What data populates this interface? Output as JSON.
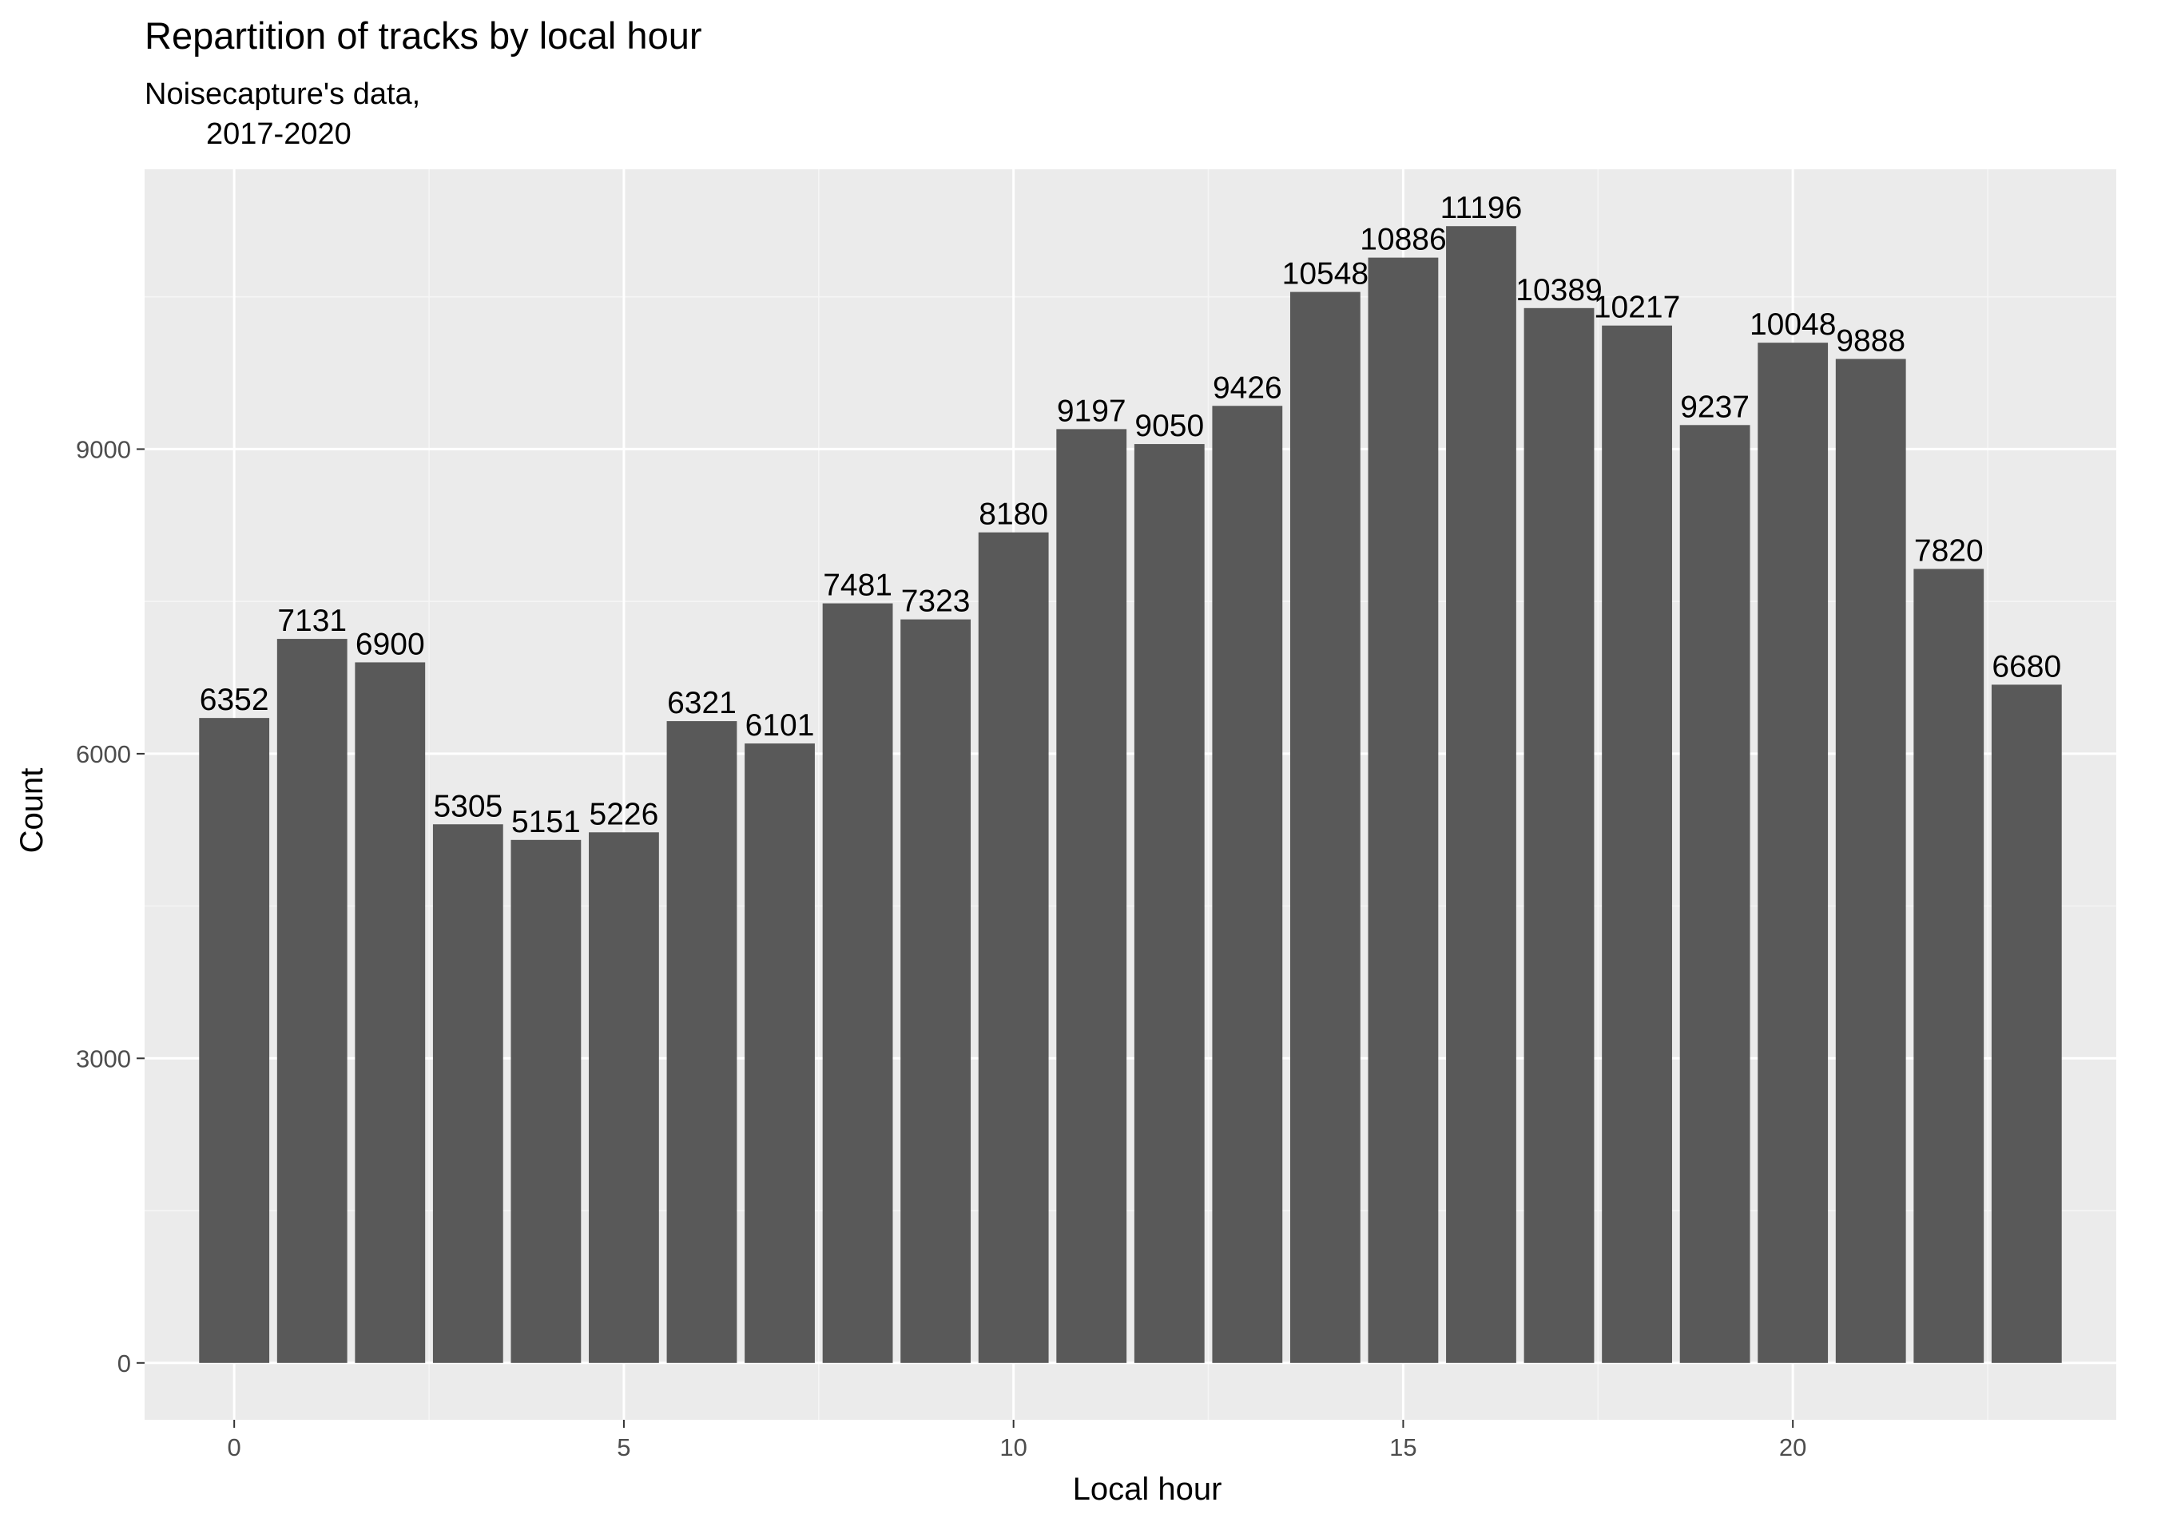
{
  "chart_data": {
    "type": "bar",
    "title": "Repartition of tracks by local hour",
    "subtitle_lines": [
      "Noisecapture's data,",
      "2017-2020"
    ],
    "xlabel": "Local hour",
    "ylabel": "Count",
    "x": [
      0,
      1,
      2,
      3,
      4,
      5,
      6,
      7,
      8,
      9,
      10,
      11,
      12,
      13,
      14,
      15,
      16,
      17,
      18,
      19,
      20,
      21,
      22,
      23
    ],
    "values": [
      6352,
      7131,
      6900,
      5305,
      5151,
      5226,
      6321,
      6101,
      7481,
      7323,
      8180,
      9197,
      9050,
      9426,
      10548,
      10886,
      11196,
      10389,
      10217,
      9237,
      10048,
      9888,
      7820,
      6680
    ],
    "x_ticks": [
      0,
      5,
      10,
      15,
      20
    ],
    "y_ticks": [
      0,
      3000,
      6000,
      9000
    ],
    "xlim": [
      -1.15,
      24.15
    ],
    "ylim": [
      -560,
      11756
    ],
    "grid": true,
    "legend": "none",
    "colors": {
      "bar": "#595959",
      "panel": "#ebebeb",
      "grid_major": "#ffffff",
      "grid_minor": "#f5f5f5"
    }
  }
}
